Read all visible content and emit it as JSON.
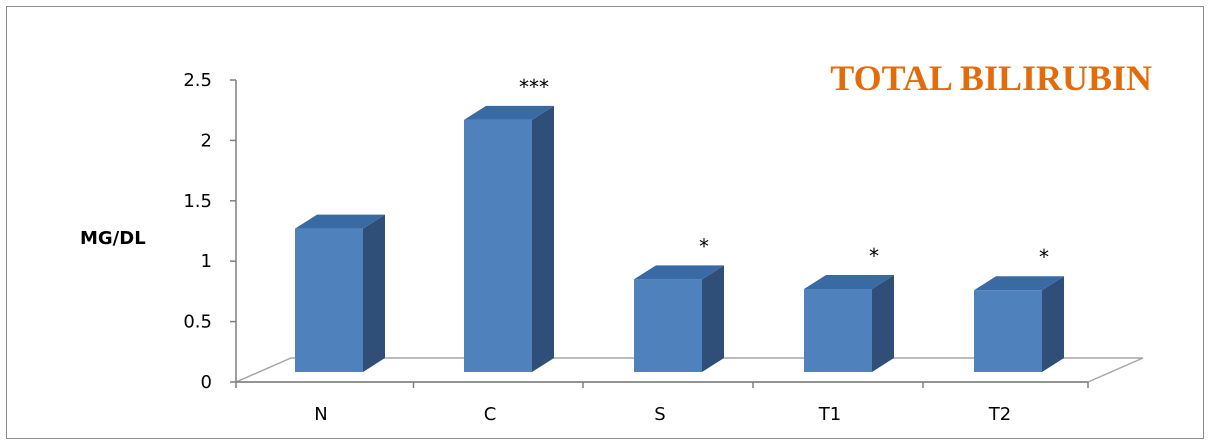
{
  "chart_data": {
    "type": "bar",
    "title": "TOTAL BILIRUBIN",
    "xlabel": "",
    "ylabel": "MG/DL",
    "categories": [
      "N",
      "C",
      "S",
      "T1",
      "T2"
    ],
    "values": [
      1.27,
      2.17,
      0.85,
      0.77,
      0.76
    ],
    "annotations": [
      "",
      "***",
      "*",
      "*",
      "*"
    ],
    "ylim": [
      0,
      2.5
    ],
    "yticks": [
      "0",
      "0.5",
      "1",
      "1.5",
      "2",
      "2.5"
    ],
    "grid": false,
    "legend": "none",
    "colors": {
      "bar_front": "#4f81bd",
      "bar_side": "#2f4e78",
      "bar_top": "#3a6aa3",
      "title": "#e36c0a"
    }
  }
}
